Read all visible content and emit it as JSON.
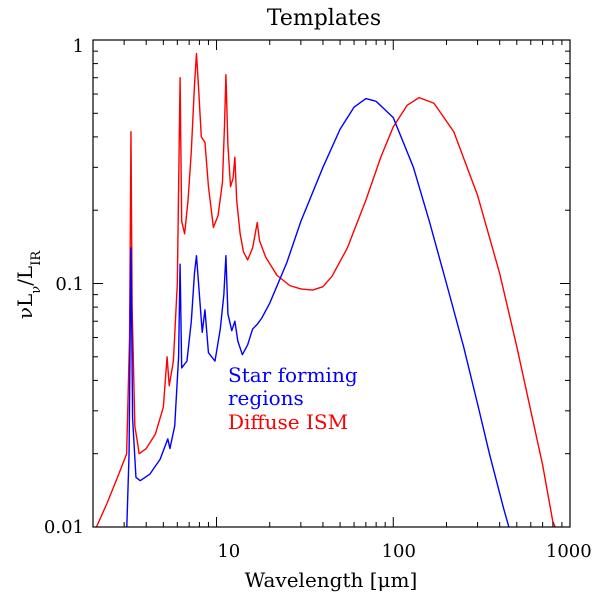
{
  "chart_data": {
    "type": "line",
    "title": "Templates",
    "xlabel": "Wavelength [μm]",
    "ylabel_parts": {
      "nu": "ν",
      "L": "L",
      "nu_sub": "ν",
      "slash": "/",
      "L2": "L",
      "ir_sub": "IR"
    },
    "xscale": "log",
    "yscale": "log",
    "xlim": [
      2,
      1000
    ],
    "ylim": [
      0.01,
      1.0
    ],
    "x_ticks": [
      {
        "value": 10,
        "label": "10"
      },
      {
        "value": 100,
        "label": "100"
      },
      {
        "value": 1000,
        "label": "1000"
      }
    ],
    "y_ticks": [
      {
        "value": 0.01,
        "label": "0.01"
      },
      {
        "value": 0.1,
        "label": "0.1"
      },
      {
        "value": 1,
        "label": "1"
      }
    ],
    "legend": {
      "placement": "middle-left",
      "entries": [
        {
          "lines": [
            "Star forming",
            "regions"
          ],
          "color": "#0000ff"
        },
        {
          "lines": [
            "Diffuse ISM"
          ],
          "color": "#ff0000"
        }
      ]
    },
    "series": [
      {
        "name": "Diffuse ISM",
        "color": "#ff0000",
        "points": [
          [
            2.0,
            0.0093
          ],
          [
            2.4,
            0.0125
          ],
          [
            2.8,
            0.0165
          ],
          [
            3.1,
            0.02
          ],
          [
            3.22,
            0.06
          ],
          [
            3.28,
            0.42
          ],
          [
            3.33,
            0.08
          ],
          [
            3.45,
            0.026
          ],
          [
            3.65,
            0.02
          ],
          [
            4.0,
            0.021
          ],
          [
            4.5,
            0.024
          ],
          [
            5.0,
            0.031
          ],
          [
            5.25,
            0.05
          ],
          [
            5.4,
            0.038
          ],
          [
            5.7,
            0.048
          ],
          [
            6.0,
            0.1
          ],
          [
            6.22,
            0.7
          ],
          [
            6.35,
            0.18
          ],
          [
            6.6,
            0.16
          ],
          [
            6.9,
            0.22
          ],
          [
            7.2,
            0.35
          ],
          [
            7.5,
            0.65
          ],
          [
            7.7,
            0.88
          ],
          [
            7.9,
            0.65
          ],
          [
            8.2,
            0.4
          ],
          [
            8.6,
            0.38
          ],
          [
            9.0,
            0.25
          ],
          [
            9.6,
            0.17
          ],
          [
            10.2,
            0.19
          ],
          [
            10.8,
            0.26
          ],
          [
            11.1,
            0.45
          ],
          [
            11.3,
            0.72
          ],
          [
            11.6,
            0.37
          ],
          [
            12.0,
            0.25
          ],
          [
            12.4,
            0.27
          ],
          [
            12.7,
            0.33
          ],
          [
            13.0,
            0.22
          ],
          [
            13.6,
            0.16
          ],
          [
            14.2,
            0.135
          ],
          [
            15.0,
            0.125
          ],
          [
            16.0,
            0.14
          ],
          [
            17.0,
            0.178
          ],
          [
            17.5,
            0.15
          ],
          [
            19.0,
            0.128
          ],
          [
            22.0,
            0.108
          ],
          [
            26.0,
            0.098
          ],
          [
            30.0,
            0.095
          ],
          [
            35.0,
            0.094
          ],
          [
            40.0,
            0.097
          ],
          [
            45.0,
            0.107
          ],
          [
            55.0,
            0.14
          ],
          [
            70.0,
            0.22
          ],
          [
            85.0,
            0.33
          ],
          [
            100.0,
            0.44
          ],
          [
            120.0,
            0.54
          ],
          [
            140.0,
            0.58
          ],
          [
            170.0,
            0.55
          ],
          [
            220.0,
            0.42
          ],
          [
            300.0,
            0.23
          ],
          [
            400.0,
            0.11
          ],
          [
            500.0,
            0.055
          ],
          [
            600.0,
            0.03
          ],
          [
            700.0,
            0.018
          ],
          [
            800.0,
            0.0105
          ],
          [
            850.0,
            0.0095
          ]
        ]
      },
      {
        "name": "Star forming regions",
        "color": "#0000ff",
        "points": [
          [
            3.1,
            0.0095
          ],
          [
            3.2,
            0.02
          ],
          [
            3.28,
            0.14
          ],
          [
            3.35,
            0.028
          ],
          [
            3.5,
            0.016
          ],
          [
            3.7,
            0.0155
          ],
          [
            4.2,
            0.0165
          ],
          [
            4.8,
            0.019
          ],
          [
            5.3,
            0.023
          ],
          [
            5.45,
            0.021
          ],
          [
            5.8,
            0.026
          ],
          [
            6.1,
            0.05
          ],
          [
            6.22,
            0.12
          ],
          [
            6.35,
            0.045
          ],
          [
            6.8,
            0.048
          ],
          [
            7.2,
            0.07
          ],
          [
            7.5,
            0.11
          ],
          [
            7.7,
            0.13
          ],
          [
            8.0,
            0.09
          ],
          [
            8.3,
            0.063
          ],
          [
            8.6,
            0.078
          ],
          [
            9.0,
            0.052
          ],
          [
            9.8,
            0.048
          ],
          [
            10.5,
            0.065
          ],
          [
            11.0,
            0.09
          ],
          [
            11.3,
            0.13
          ],
          [
            11.6,
            0.075
          ],
          [
            12.2,
            0.064
          ],
          [
            12.7,
            0.07
          ],
          [
            13.2,
            0.058
          ],
          [
            14.0,
            0.051
          ],
          [
            15.0,
            0.056
          ],
          [
            16.0,
            0.065
          ],
          [
            17.0,
            0.068
          ],
          [
            18.0,
            0.072
          ],
          [
            20.0,
            0.083
          ],
          [
            25.0,
            0.122
          ],
          [
            30.0,
            0.18
          ],
          [
            40.0,
            0.3
          ],
          [
            50.0,
            0.43
          ],
          [
            60.0,
            0.53
          ],
          [
            70.0,
            0.575
          ],
          [
            80.0,
            0.56
          ],
          [
            100.0,
            0.48
          ],
          [
            130.0,
            0.3
          ],
          [
            160.0,
            0.18
          ],
          [
            200.0,
            0.1
          ],
          [
            250.0,
            0.055
          ],
          [
            300.0,
            0.032
          ],
          [
            350.0,
            0.02
          ],
          [
            420.0,
            0.012
          ],
          [
            460.0,
            0.0095
          ]
        ]
      }
    ]
  }
}
